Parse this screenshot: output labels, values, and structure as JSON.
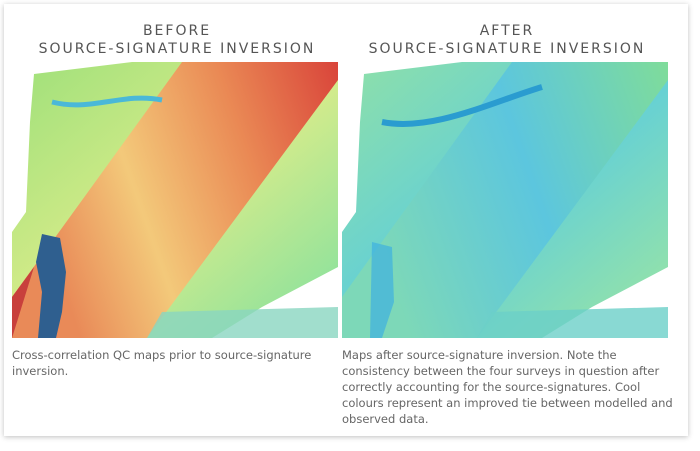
{
  "panels": [
    {
      "title": [
        "BEFORE",
        "SOURCE-SIGNATURE INVERSION"
      ],
      "caption": "Cross-correlation QC maps prior to source-signature inversion."
    },
    {
      "title": [
        "AFTER",
        "SOURCE-SIGNATURE INVERSION"
      ],
      "caption": "Maps after source-signature inversion. Note the consistency between the four surveys in question after correctly accounting for the source-signatures. Cool colours represent an improved tie between modelled and observed data."
    }
  ]
}
